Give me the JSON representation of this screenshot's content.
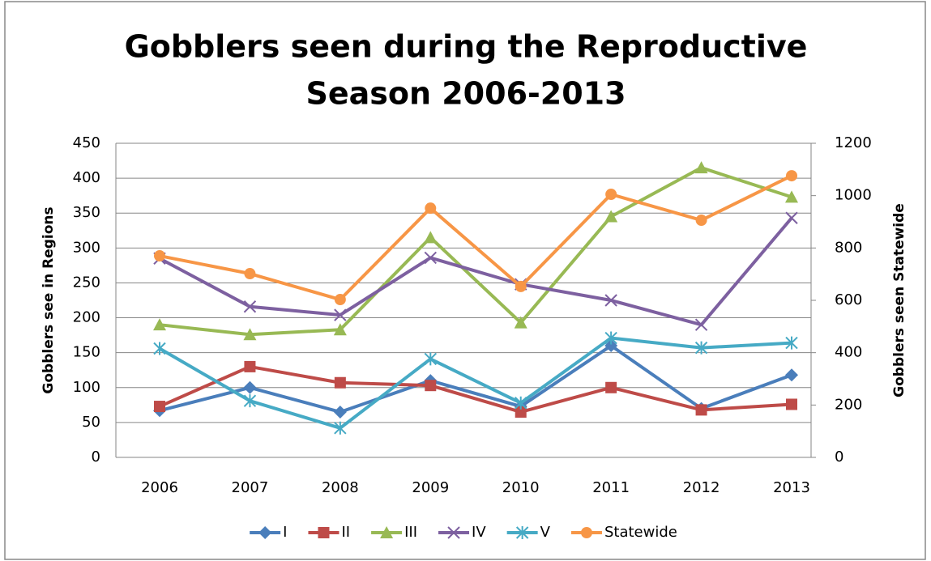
{
  "chart_data": {
    "type": "line",
    "title": [
      "Gobblers seen during the Reproductive",
      "Season  2006-2013"
    ],
    "y_label": "Gobblers see in Regions",
    "y2_label": "Gobblers seen Statewide",
    "categories": [
      "2006",
      "2007",
      "2008",
      "2009",
      "2010",
      "2011",
      "2012",
      "2013"
    ],
    "series": [
      {
        "name": "I",
        "color": "#4a7ebb",
        "marker": "diamond",
        "values": [
          67,
          100,
          65,
          110,
          73,
          160,
          70,
          118
        ]
      },
      {
        "name": "II",
        "color": "#be4b48",
        "marker": "square",
        "values": [
          73,
          130,
          107,
          103,
          65,
          100,
          68,
          76
        ]
      },
      {
        "name": "III",
        "color": "#98b954",
        "marker": "triangle",
        "values": [
          190,
          176,
          183,
          315,
          193,
          345,
          415,
          373
        ]
      },
      {
        "name": "IV",
        "color": "#7d60a0",
        "marker": "x",
        "values": [
          285,
          216,
          204,
          286,
          248,
          225,
          190,
          343
        ]
      },
      {
        "name": "V",
        "color": "#46aac5",
        "marker": "star",
        "values": [
          156,
          81,
          42,
          141,
          78,
          171,
          157,
          164
        ]
      },
      {
        "name": "Statewide",
        "color": "#f79646",
        "marker": "circle",
        "axis": "y2",
        "values": [
          770,
          702,
          603,
          952,
          653,
          1005,
          906,
          1076
        ]
      }
    ],
    "ylim": [
      0,
      450
    ],
    "yticks": [
      0,
      50,
      100,
      150,
      200,
      250,
      300,
      350,
      400,
      450
    ],
    "y2lim": [
      0,
      1200
    ],
    "y2ticks": [
      0,
      200,
      400,
      600,
      800,
      1000,
      1200
    ],
    "grid": true,
    "legend": "bottom"
  }
}
